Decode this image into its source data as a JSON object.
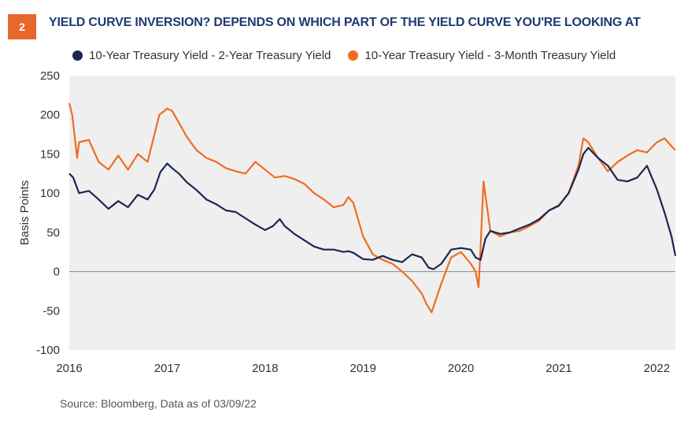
{
  "figure": {
    "number": "2",
    "title": "YIELD CURVE INVERSION? DEPENDS ON WHICH PART OF THE YIELD CURVE YOU'RE LOOKING AT",
    "source": "Source: Bloomberg, Data as of  03/09/22"
  },
  "colors": {
    "series1": "#1c2553",
    "series2": "#ee6d23",
    "plot_bg": "#efefef",
    "zero_line": "#8a8a8a"
  },
  "chart_data": {
    "type": "line",
    "ylabel": "Basis Points",
    "xlabel": "",
    "ylim": [
      -100,
      250
    ],
    "yticks": [
      "250",
      "200",
      "150",
      "100",
      "50",
      "0",
      "-50",
      "-100"
    ],
    "xticks": [
      "2016",
      "2017",
      "2018",
      "2019",
      "2020",
      "2021",
      "2022"
    ],
    "xlim": [
      2016.0,
      2022.19
    ],
    "grid": false,
    "legend_position": "top",
    "series": [
      {
        "name": "10-Year Treasury Yield - 2-Year Treasury Yield",
        "x": [
          2016.0,
          2016.04,
          2016.1,
          2016.2,
          2016.3,
          2016.4,
          2016.5,
          2016.6,
          2016.7,
          2016.8,
          2016.87,
          2016.93,
          2017.0,
          2017.05,
          2017.12,
          2017.2,
          2017.3,
          2017.4,
          2017.5,
          2017.6,
          2017.7,
          2017.8,
          2017.9,
          2018.0,
          2018.08,
          2018.15,
          2018.2,
          2018.3,
          2018.4,
          2018.5,
          2018.6,
          2018.7,
          2018.8,
          2018.85,
          2018.9,
          2019.0,
          2019.1,
          2019.2,
          2019.3,
          2019.4,
          2019.5,
          2019.6,
          2019.67,
          2019.72,
          2019.8,
          2019.9,
          2020.0,
          2020.1,
          2020.15,
          2020.2,
          2020.25,
          2020.3,
          2020.4,
          2020.5,
          2020.6,
          2020.7,
          2020.8,
          2020.9,
          2021.0,
          2021.1,
          2021.2,
          2021.25,
          2021.3,
          2021.4,
          2021.5,
          2021.6,
          2021.7,
          2021.8,
          2021.9,
          2022.0,
          2022.08,
          2022.15,
          2022.19
        ],
        "values": [
          125,
          120,
          100,
          103,
          92,
          80,
          90,
          82,
          98,
          92,
          105,
          127,
          138,
          132,
          125,
          114,
          104,
          92,
          86,
          78,
          76,
          68,
          60,
          53,
          58,
          67,
          58,
          48,
          40,
          32,
          28,
          28,
          25,
          26,
          24,
          16,
          15,
          20,
          15,
          12,
          22,
          18,
          5,
          3,
          10,
          28,
          30,
          28,
          18,
          15,
          42,
          52,
          48,
          50,
          55,
          60,
          67,
          78,
          84,
          100,
          130,
          150,
          158,
          145,
          135,
          117,
          115,
          120,
          135,
          105,
          75,
          45,
          20
        ]
      },
      {
        "name": "10-Year Treasury Yield - 3-Month Treasury Yield",
        "x": [
          2016.0,
          2016.03,
          2016.08,
          2016.1,
          2016.2,
          2016.3,
          2016.4,
          2016.5,
          2016.6,
          2016.7,
          2016.8,
          2016.87,
          2016.92,
          2017.0,
          2017.05,
          2017.12,
          2017.2,
          2017.3,
          2017.4,
          2017.5,
          2017.6,
          2017.7,
          2017.8,
          2017.9,
          2018.0,
          2018.1,
          2018.2,
          2018.3,
          2018.4,
          2018.5,
          2018.6,
          2018.7,
          2018.8,
          2018.85,
          2018.9,
          2019.0,
          2019.1,
          2019.2,
          2019.3,
          2019.4,
          2019.5,
          2019.6,
          2019.65,
          2019.7,
          2019.8,
          2019.9,
          2020.0,
          2020.1,
          2020.15,
          2020.18,
          2020.2,
          2020.23,
          2020.3,
          2020.4,
          2020.5,
          2020.6,
          2020.7,
          2020.8,
          2020.9,
          2021.0,
          2021.1,
          2021.2,
          2021.25,
          2021.3,
          2021.4,
          2021.5,
          2021.6,
          2021.7,
          2021.8,
          2021.9,
          2022.0,
          2022.08,
          2022.15,
          2022.19
        ],
        "values": [
          215,
          200,
          145,
          165,
          168,
          140,
          130,
          148,
          130,
          150,
          140,
          175,
          200,
          208,
          205,
          190,
          172,
          155,
          145,
          140,
          132,
          128,
          125,
          140,
          130,
          120,
          122,
          118,
          112,
          100,
          92,
          82,
          85,
          95,
          88,
          45,
          22,
          15,
          10,
          0,
          -12,
          -28,
          -42,
          -52,
          -15,
          18,
          25,
          10,
          0,
          -20,
          30,
          115,
          52,
          45,
          50,
          52,
          58,
          65,
          78,
          85,
          100,
          135,
          170,
          165,
          145,
          128,
          140,
          148,
          155,
          152,
          165,
          170,
          160,
          155
        ]
      }
    ]
  }
}
